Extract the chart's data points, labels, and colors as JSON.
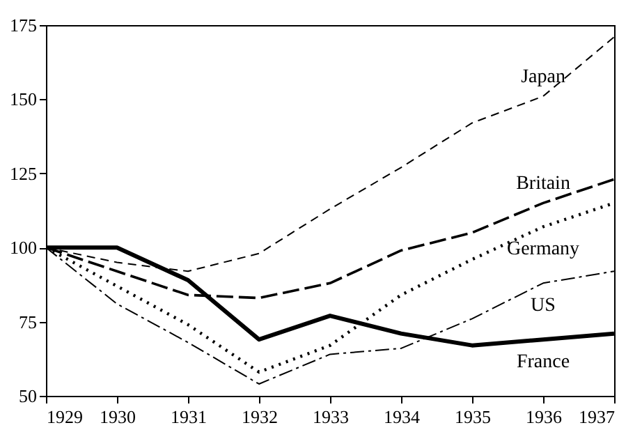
{
  "chart_data": {
    "type": "line",
    "x": [
      1929,
      1930,
      1931,
      1932,
      1933,
      1934,
      1935,
      1936,
      1937
    ],
    "series": [
      {
        "name": "Japan",
        "color": "#000000",
        "line_style": "dashed",
        "values": [
          100,
          95,
          92,
          98,
          113,
          127,
          142,
          151,
          171
        ]
      },
      {
        "name": "Britain",
        "color": "#000000",
        "line_style": "longdash",
        "values": [
          100,
          92,
          84,
          83,
          88,
          99,
          105,
          115,
          123
        ]
      },
      {
        "name": "Germany",
        "color": "#000000",
        "line_style": "dotted",
        "values": [
          100,
          87,
          74,
          58,
          67,
          84,
          96,
          107,
          115
        ]
      },
      {
        "name": "US",
        "color": "#000000",
        "line_style": "dashdot",
        "values": [
          100,
          81,
          68,
          54,
          64,
          66,
          76,
          88,
          92
        ]
      },
      {
        "name": "France",
        "color": "#000000",
        "line_style": "solid",
        "values": [
          100,
          100,
          89,
          69,
          77,
          71,
          67,
          69,
          71
        ]
      }
    ],
    "xlim": [
      1929,
      1937
    ],
    "xticks": [
      1929,
      1930,
      1931,
      1932,
      1933,
      1934,
      1935,
      1936,
      1937
    ],
    "ylim": [
      50,
      175
    ],
    "yticks": [
      50,
      75,
      100,
      125,
      150,
      175
    ],
    "grid": false,
    "marker": "none"
  }
}
